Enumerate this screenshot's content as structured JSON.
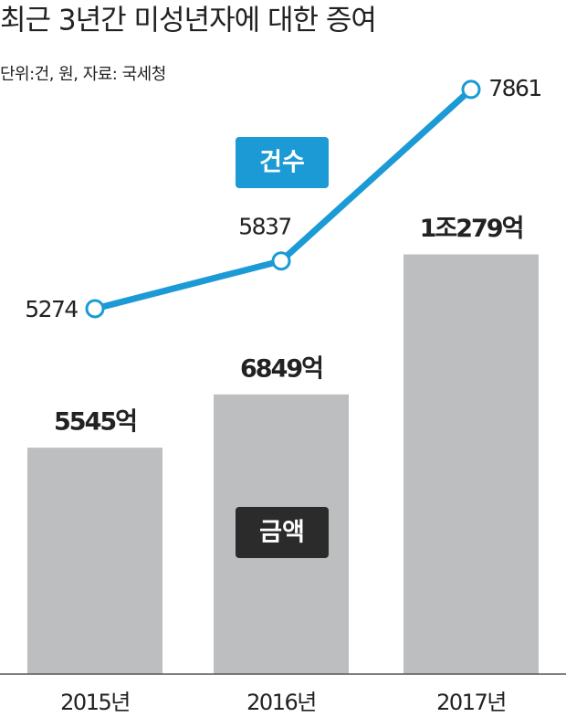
{
  "chart_data": {
    "type": "bar",
    "title": "최근 3년간 미성년자에 대한 증여",
    "subtitle": "단위:건, 원, 자료: 국세청",
    "categories": [
      "2015년",
      "2016년",
      "2017년"
    ],
    "series": [
      {
        "name": "건수",
        "type": "line",
        "color": "#1b9ad6",
        "values": [
          5274,
          5837,
          7861
        ]
      },
      {
        "name": "금액",
        "type": "bar",
        "color": "#bdbec0",
        "values": [
          5545,
          6849,
          10279
        ],
        "value_labels": [
          "5545억",
          "6849억",
          "1조279억"
        ]
      }
    ]
  }
}
